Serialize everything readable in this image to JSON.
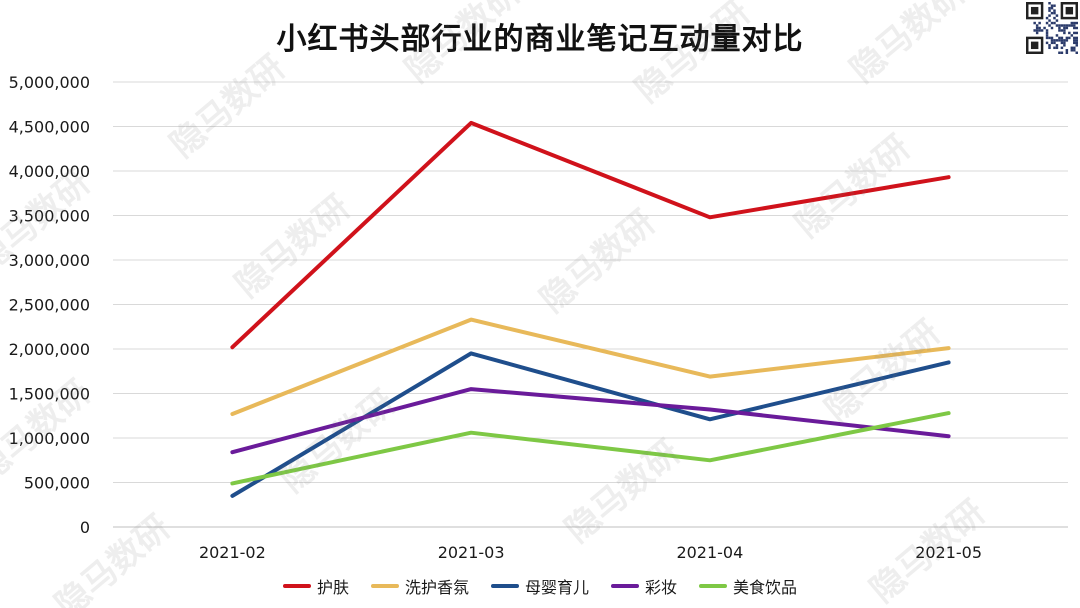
{
  "chart_data": {
    "type": "line",
    "title": "小红书头部行业的商业笔记互动量对比",
    "xlabel": "",
    "ylabel": "",
    "categories": [
      "2021-02",
      "2021-03",
      "2021-04",
      "2021-05"
    ],
    "ylim": [
      0,
      5000000
    ],
    "yticks": [
      0,
      500000,
      1000000,
      1500000,
      2000000,
      2500000,
      3000000,
      3500000,
      4000000,
      4500000,
      5000000
    ],
    "ytick_labels": [
      "0",
      "500,000",
      "1,000,000",
      "1,500,000",
      "2,000,000",
      "2,500,000",
      "3,000,000",
      "3,500,000",
      "4,000,000",
      "4,500,000",
      "5,000,000"
    ],
    "grid": true,
    "legend_position": "bottom",
    "series": [
      {
        "name": "护肤",
        "color": "#d0121b",
        "values": [
          2020000,
          4540000,
          3480000,
          3930000
        ]
      },
      {
        "name": "洗护香氛",
        "color": "#e8b95a",
        "values": [
          1270000,
          2330000,
          1690000,
          2010000
        ]
      },
      {
        "name": "母婴育儿",
        "color": "#1f4e8c",
        "values": [
          350000,
          1950000,
          1210000,
          1850000
        ]
      },
      {
        "name": "彩妆",
        "color": "#6a1b9a",
        "values": [
          840000,
          1550000,
          1320000,
          1020000
        ]
      },
      {
        "name": "美食饮品",
        "color": "#7ec845",
        "values": [
          490000,
          1060000,
          750000,
          1280000
        ]
      }
    ]
  },
  "watermark": {
    "text": "隐马数研"
  }
}
